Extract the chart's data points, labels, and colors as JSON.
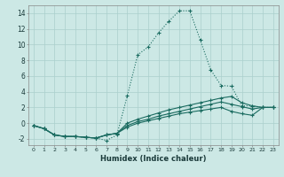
{
  "xlabel": "Humidex (Indice chaleur)",
  "bg_color": "#cce8e5",
  "grid_color": "#aacfcc",
  "line_color": "#1a6b60",
  "xlim": [
    -0.5,
    23.5
  ],
  "ylim": [
    -2.8,
    15.0
  ],
  "x_ticks": [
    0,
    1,
    2,
    3,
    4,
    5,
    6,
    7,
    8,
    9,
    10,
    11,
    12,
    13,
    14,
    15,
    16,
    17,
    18,
    19,
    20,
    21,
    22,
    23
  ],
  "y_ticks": [
    -2,
    0,
    2,
    4,
    6,
    8,
    10,
    12,
    14
  ],
  "lines": [
    {
      "x": [
        0,
        1,
        2,
        3,
        4,
        5,
        6,
        7,
        8,
        9,
        10,
        11,
        12,
        13,
        14,
        15,
        16,
        17,
        18,
        19,
        20,
        21,
        22,
        23
      ],
      "y": [
        -0.3,
        -0.7,
        -1.5,
        -1.7,
        -1.7,
        -1.8,
        -1.9,
        -2.2,
        -1.5,
        3.5,
        8.7,
        9.7,
        11.5,
        13.0,
        14.3,
        14.3,
        10.6,
        6.8,
        4.8,
        4.7,
        2.2,
        2.2,
        2.0,
        2.0
      ],
      "dotted": true
    },
    {
      "x": [
        0,
        1,
        2,
        3,
        4,
        5,
        6,
        7,
        8,
        9,
        10,
        11,
        12,
        13,
        14,
        15,
        16,
        17,
        18,
        19,
        20,
        21,
        22,
        23
      ],
      "y": [
        -0.3,
        -0.7,
        -1.5,
        -1.7,
        -1.7,
        -1.8,
        -1.9,
        -1.5,
        -1.3,
        0.0,
        0.5,
        0.9,
        1.3,
        1.7,
        2.0,
        2.3,
        2.6,
        2.9,
        3.2,
        3.4,
        2.6,
        2.2,
        2.0,
        2.0
      ],
      "dotted": false
    },
    {
      "x": [
        0,
        1,
        2,
        3,
        4,
        5,
        6,
        7,
        8,
        9,
        10,
        11,
        12,
        13,
        14,
        15,
        16,
        17,
        18,
        19,
        20,
        21,
        22,
        23
      ],
      "y": [
        -0.3,
        -0.7,
        -1.5,
        -1.7,
        -1.7,
        -1.8,
        -1.9,
        -1.5,
        -1.3,
        -0.3,
        0.2,
        0.5,
        0.9,
        1.2,
        1.5,
        1.8,
        2.1,
        2.4,
        2.7,
        2.4,
        2.1,
        1.8,
        2.0,
        2.0
      ],
      "dotted": false
    },
    {
      "x": [
        0,
        1,
        2,
        3,
        4,
        5,
        6,
        7,
        8,
        9,
        10,
        11,
        12,
        13,
        14,
        15,
        16,
        17,
        18,
        19,
        20,
        21,
        22,
        23
      ],
      "y": [
        -0.3,
        -0.7,
        -1.5,
        -1.7,
        -1.7,
        -1.8,
        -1.9,
        -1.5,
        -1.3,
        -0.5,
        0.0,
        0.3,
        0.6,
        0.9,
        1.2,
        1.4,
        1.6,
        1.8,
        2.0,
        1.5,
        1.2,
        1.0,
        2.0,
        2.0
      ],
      "dotted": false
    }
  ]
}
